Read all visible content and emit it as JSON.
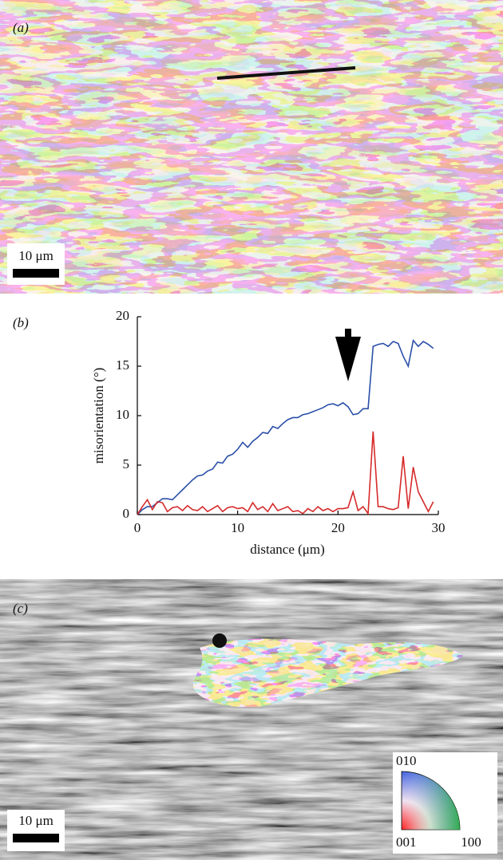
{
  "panel_a": {
    "label": "(a)",
    "scale_bar": "10 μm"
  },
  "chart_data": {
    "type": "line",
    "panel_label": "(b)",
    "x_label": "distance (μm)",
    "y_label": "misorientation (°)",
    "xlim": [
      0,
      30
    ],
    "xticks": [
      0,
      10,
      20,
      30
    ],
    "ylim": [
      0,
      20
    ],
    "yticks": [
      0,
      5,
      10,
      15,
      20
    ],
    "x": [
      0,
      0.5,
      1,
      1.5,
      2,
      2.5,
      3,
      3.5,
      4,
      4.5,
      5,
      5.5,
      6,
      6.5,
      7,
      7.5,
      8,
      8.5,
      9,
      9.5,
      10,
      10.5,
      11,
      11.5,
      12,
      12.5,
      13,
      13.5,
      14,
      14.5,
      15,
      15.5,
      16,
      16.5,
      17,
      17.5,
      18,
      18.5,
      19,
      19.5,
      20,
      20.5,
      21,
      21.5,
      22,
      22.5,
      23,
      23.5,
      24,
      24.5,
      25,
      25.5,
      26,
      26.5,
      27,
      27.5,
      28,
      28.5,
      29,
      29.5
    ],
    "series": [
      {
        "color": "#2a4fa8",
        "values": [
          0,
          0.5,
          0.8,
          0.8,
          1.2,
          1.6,
          1.6,
          1.5,
          2.0,
          2.5,
          3.0,
          3.5,
          3.9,
          4.0,
          4.4,
          4.6,
          5.3,
          5.2,
          5.9,
          6.1,
          6.6,
          7.3,
          6.8,
          7.4,
          7.8,
          8.3,
          8.2,
          8.9,
          8.7,
          9.2,
          9.6,
          9.8,
          9.8,
          10.1,
          10.2,
          10.4,
          10.6,
          10.8,
          11.1,
          11.2,
          11.0,
          11.3,
          10.9,
          10.1,
          10.2,
          10.7,
          10.7,
          17.0,
          17.2,
          17.3,
          17.0,
          17.5,
          17.3,
          16.0,
          15.0,
          17.6,
          17.0,
          17.5,
          17.2,
          16.8
        ]
      },
      {
        "color": "#d62a2a",
        "values": [
          0,
          0.8,
          1.5,
          0.5,
          1.3,
          1.2,
          0.3,
          0.7,
          0.8,
          0.4,
          0.9,
          0.5,
          0.4,
          0.8,
          0.3,
          0.6,
          0.9,
          0.3,
          0.7,
          0.8,
          0.6,
          0.7,
          0.3,
          1.2,
          0.5,
          0.8,
          0.3,
          1.1,
          0.4,
          0.6,
          0.8,
          0.3,
          0.4,
          0.1,
          0.6,
          0.3,
          0.8,
          0.4,
          0.6,
          0.3,
          0.6,
          0.6,
          0.7,
          2.3,
          0.4,
          0.8,
          0.1,
          8.4,
          0.8,
          0.8,
          0.6,
          0.5,
          0.7,
          5.9,
          0.6,
          4.8,
          2.3,
          1.3,
          0.3,
          1.3
        ]
      }
    ]
  },
  "panel_c": {
    "label": "(c)",
    "scale_bar": "10 μm",
    "key": {
      "top": "010",
      "origin": "001",
      "right": "100"
    }
  }
}
